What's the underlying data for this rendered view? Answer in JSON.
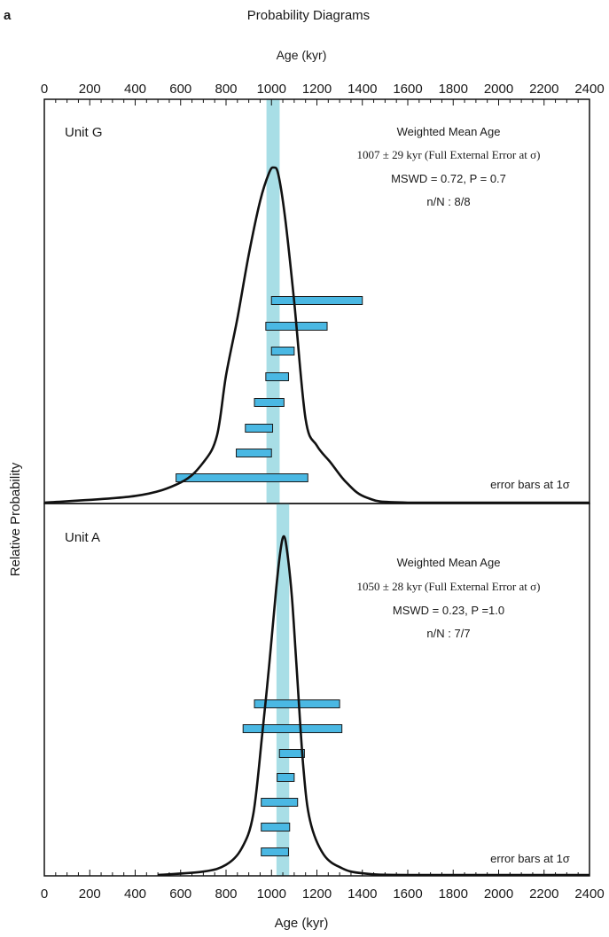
{
  "figure": {
    "panel_letter": "a",
    "title": "Probability Diagrams",
    "top_axis_label": "Age (kyr)",
    "bottom_axis_label": "Age (kyr)",
    "y_axis_label": "Relative Probability"
  },
  "chart_data": [
    {
      "type": "probability-density",
      "panel": "Unit G",
      "xlim": [
        0,
        2400
      ],
      "xticks": [
        0,
        200,
        400,
        600,
        800,
        1000,
        1200,
        1400,
        1600,
        1800,
        2000,
        2200,
        2400
      ],
      "weighted_mean": 1007,
      "weighted_mean_error": 29,
      "annotation": {
        "heading": "Weighted Mean Age",
        "age_line": "1007 ± 29 kyr (Full External Error at σ)",
        "mswd_line": "MSWD = 0.72, P = 0.7",
        "n_line": "n/N : 8/8",
        "error_note": "error bars at 1σ"
      },
      "error_bars": [
        {
          "low": 1000,
          "high": 1400
        },
        {
          "low": 975,
          "high": 1245
        },
        {
          "low": 1000,
          "high": 1100
        },
        {
          "low": 975,
          "high": 1075
        },
        {
          "low": 925,
          "high": 1055
        },
        {
          "low": 885,
          "high": 1005
        },
        {
          "low": 845,
          "high": 1000
        },
        {
          "low": 580,
          "high": 1160
        }
      ],
      "curve": [
        [
          0,
          0
        ],
        [
          400,
          0.02
        ],
        [
          600,
          0.06
        ],
        [
          700,
          0.12
        ],
        [
          760,
          0.2
        ],
        [
          800,
          0.38
        ],
        [
          850,
          0.55
        ],
        [
          900,
          0.74
        ],
        [
          950,
          0.9
        ],
        [
          990,
          0.985
        ],
        [
          1010,
          1.0
        ],
        [
          1030,
          0.98
        ],
        [
          1060,
          0.85
        ],
        [
          1100,
          0.6
        ],
        [
          1150,
          0.25
        ],
        [
          1200,
          0.17
        ],
        [
          1260,
          0.12
        ],
        [
          1330,
          0.06
        ],
        [
          1420,
          0.015
        ],
        [
          1600,
          0
        ],
        [
          2400,
          0
        ]
      ]
    },
    {
      "type": "probability-density",
      "panel": "Unit A",
      "xlim": [
        0,
        2400
      ],
      "xticks": [
        0,
        200,
        400,
        600,
        800,
        1000,
        1200,
        1400,
        1600,
        1800,
        2000,
        2200,
        2400
      ],
      "weighted_mean": 1050,
      "weighted_mean_error": 28,
      "annotation": {
        "heading": "Weighted Mean Age",
        "age_line": "1050 ± 28 kyr (Full External Error at σ)",
        "mswd_line": "MSWD = 0.23, P =1.0",
        "n_line": "n/N : 7/7",
        "error_note": "error bars at 1σ"
      },
      "error_bars": [
        {
          "low": 925,
          "high": 1300
        },
        {
          "low": 875,
          "high": 1310
        },
        {
          "low": 1035,
          "high": 1145
        },
        {
          "low": 1025,
          "high": 1100
        },
        {
          "low": 955,
          "high": 1115
        },
        {
          "low": 955,
          "high": 1080
        },
        {
          "low": 955,
          "high": 1075
        }
      ],
      "curve": [
        [
          500,
          0
        ],
        [
          700,
          0.01
        ],
        [
          800,
          0.03
        ],
        [
          870,
          0.08
        ],
        [
          920,
          0.18
        ],
        [
          960,
          0.42
        ],
        [
          990,
          0.62
        ],
        [
          1020,
          0.84
        ],
        [
          1040,
          0.96
        ],
        [
          1055,
          1.0
        ],
        [
          1070,
          0.95
        ],
        [
          1090,
          0.82
        ],
        [
          1110,
          0.62
        ],
        [
          1140,
          0.32
        ],
        [
          1170,
          0.16
        ],
        [
          1230,
          0.06
        ],
        [
          1310,
          0.02
        ],
        [
          1400,
          0.005
        ],
        [
          1600,
          0
        ],
        [
          2400,
          0
        ]
      ]
    }
  ],
  "style": {
    "band_color": "#a8dee6",
    "bar_color": "#4ab8e3",
    "curve_color": "#111111"
  }
}
